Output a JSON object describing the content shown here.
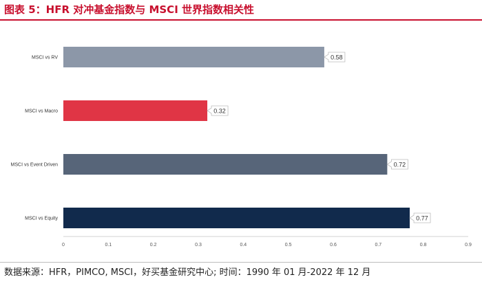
{
  "header": {
    "title": "图表 5：HFR 对冲基金指数与 MSCI 世界指数相关性"
  },
  "footer": {
    "source": "数据来源：HFR，PIMCO, MSCI，好买基金研究中心; 时间：1990 年 01 月-2022 年 12 月"
  },
  "colors": {
    "title": "#c8102e",
    "rule": "#c8102e"
  },
  "chart_data": {
    "type": "bar",
    "orientation": "horizontal",
    "categories": [
      "MSCI vs RV",
      "MSCI vs Macro",
      "MSCI vs Event Driven",
      "MSCI vs Equity"
    ],
    "values": [
      0.58,
      0.32,
      0.72,
      0.77
    ],
    "data_labels": [
      "0.58",
      "0.32",
      "0.72",
      "0.77"
    ],
    "bar_colors": [
      "#8c97a8",
      "#e03545",
      "#576579",
      "#112a4c"
    ],
    "x_ticks": [
      "0",
      "0.1",
      "0.2",
      "0.3",
      "0.4",
      "0.5",
      "0.6",
      "0.7",
      "0.8",
      "0.9"
    ],
    "xlim": [
      0,
      0.9
    ],
    "grid": false,
    "legend": "none"
  }
}
